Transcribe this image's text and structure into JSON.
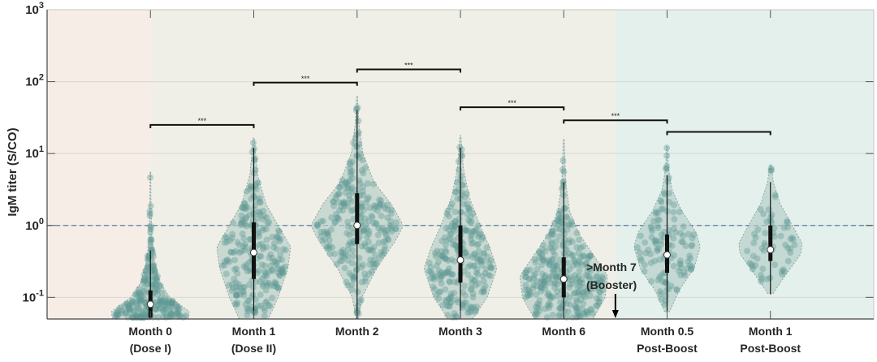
{
  "chart_data": {
    "type": "violin",
    "ylabel": "IgM titer (S/CO)",
    "yscale": "log",
    "ylim": [
      0.05,
      1000
    ],
    "yticks": [
      {
        "base": "10",
        "exp": "-1",
        "value": 0.1
      },
      {
        "base": "10",
        "exp": "0",
        "value": 1
      },
      {
        "base": "10",
        "exp": "1",
        "value": 10
      },
      {
        "base": "10",
        "exp": "2",
        "value": 100
      },
      {
        "base": "10",
        "exp": "3",
        "value": 1000
      }
    ],
    "threshold": 1,
    "grid": true,
    "phases": [
      {
        "name": "pre-dose-2",
        "from": 0,
        "to": 1,
        "color": "#f7ede7"
      },
      {
        "name": "primary",
        "from": 1,
        "to": 5.5,
        "color": "#f0efe7"
      },
      {
        "name": "post-boost",
        "from": 5.5,
        "to": 8,
        "color": "#e3f0ec"
      }
    ],
    "xlim": [
      0,
      8
    ],
    "groups": [
      {
        "label1": "Month 0",
        "label2": "(Dose I)",
        "median": 0.08,
        "q1": 0.052,
        "q3": 0.125,
        "whisker": [
          0.05,
          0.45
        ],
        "n": 240,
        "density_profile_log10": [
          [
            -1.3,
            0.78
          ],
          [
            -1.2,
            0.8
          ],
          [
            -1.1,
            0.6
          ],
          [
            -1.0,
            0.4
          ],
          [
            -0.8,
            0.2
          ],
          [
            -0.5,
            0.08
          ],
          [
            -0.2,
            0.03
          ],
          [
            0.3,
            0.012
          ],
          [
            0.75,
            0.006
          ]
        ]
      },
      {
        "label1": "Month 1",
        "label2": "(Dose II)",
        "median": 0.42,
        "q1": 0.18,
        "q3": 1.1,
        "whisker": [
          0.05,
          12
        ],
        "n": 250,
        "density_profile_log10": [
          [
            -1.3,
            0.3
          ],
          [
            -1.0,
            0.5
          ],
          [
            -0.6,
            0.7
          ],
          [
            -0.3,
            0.76
          ],
          [
            0,
            0.5
          ],
          [
            0.3,
            0.25
          ],
          [
            0.7,
            0.08
          ],
          [
            1.22,
            0.01
          ]
        ]
      },
      {
        "label1": "Month 2",
        "label2": "",
        "median": 1.0,
        "q1": 0.55,
        "q3": 2.8,
        "whisker": [
          0.05,
          40
        ],
        "n": 260,
        "density_profile_log10": [
          [
            -1.3,
            0.02
          ],
          [
            -1.0,
            0.1
          ],
          [
            -0.6,
            0.4
          ],
          [
            -0.2,
            0.8
          ],
          [
            0,
            0.95
          ],
          [
            0.3,
            0.7
          ],
          [
            0.6,
            0.35
          ],
          [
            1.0,
            0.12
          ],
          [
            1.4,
            0.04
          ],
          [
            1.8,
            0.01
          ]
        ]
      },
      {
        "label1": "Month 3",
        "label2": "",
        "median": 0.33,
        "q1": 0.16,
        "q3": 1.0,
        "whisker": [
          0.05,
          12
        ],
        "n": 250,
        "density_profile_log10": [
          [
            -1.3,
            0.25
          ],
          [
            -1.0,
            0.55
          ],
          [
            -0.6,
            0.75
          ],
          [
            -0.3,
            0.6
          ],
          [
            0,
            0.4
          ],
          [
            0.4,
            0.18
          ],
          [
            0.8,
            0.06
          ],
          [
            1.25,
            0.01
          ]
        ]
      },
      {
        "label1": "Month 6",
        "label2": "",
        "median": 0.18,
        "q1": 0.1,
        "q3": 0.36,
        "whisker": [
          0.05,
          4
        ],
        "n": 320,
        "density_profile_log10": [
          [
            -1.3,
            0.6
          ],
          [
            -1.0,
            0.85
          ],
          [
            -0.7,
            0.9
          ],
          [
            -0.4,
            0.6
          ],
          [
            -0.1,
            0.3
          ],
          [
            0.2,
            0.12
          ],
          [
            0.6,
            0.04
          ],
          [
            1.2,
            0.01
          ]
        ]
      },
      {
        "label1": "Month 0.5",
        "label2": "Post-Boost",
        "median": 0.39,
        "q1": 0.22,
        "q3": 0.75,
        "whisker": [
          0.063,
          5
        ],
        "n": 120,
        "density_profile_log10": [
          [
            -1.2,
            0.05
          ],
          [
            -0.9,
            0.25
          ],
          [
            -0.6,
            0.55
          ],
          [
            -0.3,
            0.68
          ],
          [
            -0.1,
            0.6
          ],
          [
            0.2,
            0.3
          ],
          [
            0.5,
            0.1
          ],
          [
            0.8,
            0.03
          ],
          [
            1.1,
            0.01
          ]
        ]
      },
      {
        "label1": "Month 1",
        "label2": "Post-Boost",
        "median": 0.46,
        "q1": 0.32,
        "q3": 1.0,
        "whisker": [
          0.11,
          4
        ],
        "n": 60,
        "density_profile_log10": [
          [
            -0.95,
            0.05
          ],
          [
            -0.7,
            0.3
          ],
          [
            -0.4,
            0.62
          ],
          [
            -0.25,
            0.65
          ],
          [
            0,
            0.45
          ],
          [
            0.3,
            0.2
          ],
          [
            0.6,
            0.06
          ],
          [
            0.85,
            0.01
          ]
        ]
      }
    ],
    "significance": [
      {
        "from": 1,
        "to": 2,
        "level": 25,
        "label": "***"
      },
      {
        "from": 2,
        "to": 3,
        "level": 97,
        "label": "***"
      },
      {
        "from": 3,
        "to": 4,
        "level": 148,
        "label": "***"
      },
      {
        "from": 4,
        "to": 5,
        "level": 44,
        "label": "***"
      },
      {
        "from": 5,
        "to": 6,
        "level": 29,
        "label": "***"
      },
      {
        "from": 6,
        "to": 7,
        "level": 20,
        "label": ""
      }
    ],
    "annotation": {
      "line1": ">Month 7",
      "line2": "(Booster)",
      "x": 5.5
    },
    "colors": {
      "dots": "#5f9893",
      "violin": "#b3ccc6",
      "threshold": "#6d90ae",
      "box": "#111111"
    }
  }
}
